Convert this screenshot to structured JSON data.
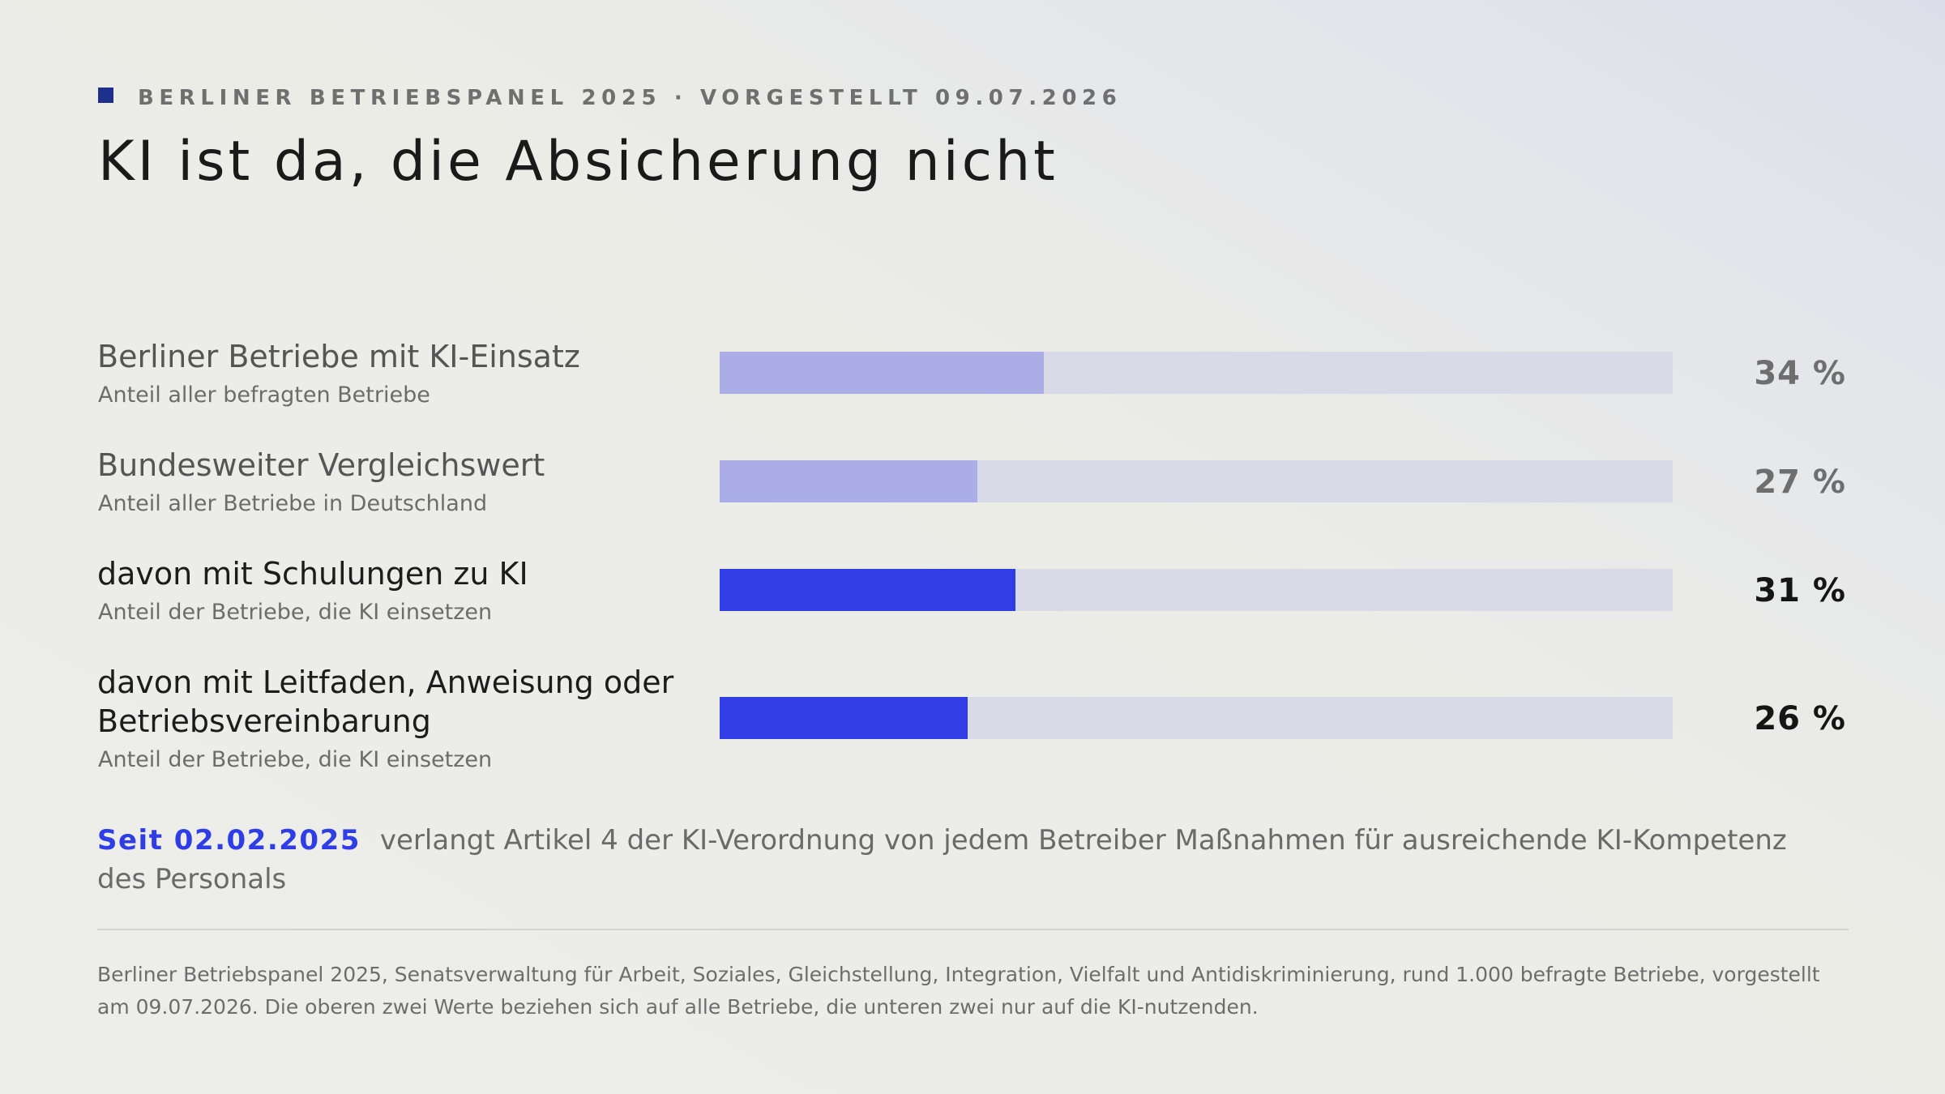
{
  "header": {
    "kicker": "BERLINER BETRIEBSPANEL 2025 · VORGESTELLT 09.07.2026",
    "title": "KI ist da, die Absicherung nicht"
  },
  "colors": {
    "accent": "#2f3de6",
    "bar_light": "#abaee6",
    "bar_strong": "#313de5",
    "track": "#d8dae8",
    "kicker_marker": "#1f2f8c"
  },
  "chart_data": {
    "type": "bar",
    "orientation": "horizontal",
    "unit": "%",
    "xlim": [
      0,
      100
    ],
    "categories": [
      "Berliner Betriebe mit KI-Einsatz",
      "Bundesweiter Vergleichswert",
      "davon mit Schulungen zu KI",
      "davon mit Leitfaden, Anweisung oder Betriebsvereinbarung"
    ],
    "values": [
      34,
      27,
      31,
      26
    ],
    "rows": [
      {
        "label": "Berliner Betriebe mit KI-Einsatz",
        "sublabel": "Anteil aller befragten Betriebe",
        "value": 34,
        "value_text": "34 %",
        "emphasis": false
      },
      {
        "label": "Bundesweiter Vergleichswert",
        "sublabel": "Anteil aller Betriebe in Deutschland",
        "value": 27,
        "value_text": "27 %",
        "emphasis": false
      },
      {
        "label": "davon mit Schulungen zu KI",
        "sublabel": "Anteil der Betriebe, die KI einsetzen",
        "value": 31,
        "value_text": "31 %",
        "emphasis": true
      },
      {
        "label": "davon mit Leitfaden, Anweisung oder Betriebsvereinbarung",
        "sublabel": "Anteil der Betriebe, die KI einsetzen",
        "value": 26,
        "value_text": "26 %",
        "emphasis": true
      }
    ]
  },
  "note": {
    "date": "Seit 02.02.2025",
    "text": "verlangt Artikel 4 der KI-Verordnung von jedem Betreiber Maßnahmen für ausreichende KI-Kompetenz des Personals"
  },
  "source": "Berliner Betriebspanel 2025, Senatsverwaltung für Arbeit, Soziales, Gleichstellung, Integration, Vielfalt und Antidiskriminierung, rund 1.000 befragte Betriebe, vorgestellt am 09.07.2026. Die oberen zwei Werte beziehen sich auf alle Betriebe, die unteren zwei nur auf die KI-nutzenden."
}
